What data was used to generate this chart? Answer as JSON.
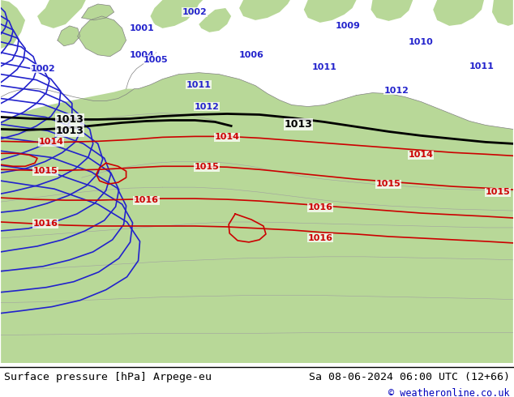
{
  "title_left": "Surface pressure [hPa] Arpege-eu",
  "title_right": "Sa 08-06-2024 06:00 UTC (12+66)",
  "copyright": "© weatheronline.co.uk",
  "bg_color": "#ffffff",
  "sea_color": "#c8d8e8",
  "land_color": "#b8d898",
  "land_color2": "#a8cc88",
  "border_color": "#909090",
  "blue": "#2222cc",
  "black": "#000000",
  "red": "#cc0000",
  "footer_fontsize": 10,
  "label_fontsize": 8,
  "figsize": [
    6.34,
    4.9
  ],
  "dpi": 100
}
